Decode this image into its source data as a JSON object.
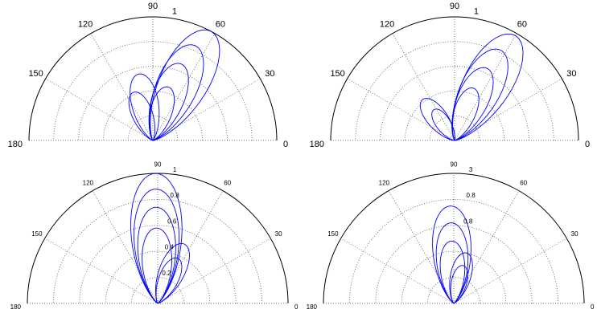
{
  "chart_data": [
    {
      "type": "polar",
      "description_free": true,
      "angle_ticks": [
        "0",
        "30",
        "60",
        "90",
        "120",
        "150",
        "180"
      ],
      "radial_tick_labels": [
        "1"
      ],
      "rlim": [
        0,
        1
      ],
      "theta_range_deg": [
        0,
        180
      ],
      "grid": true,
      "series_color": "#0000ff",
      "lobes": [
        {
          "theta_deg": 62,
          "r": 1.0
        },
        {
          "theta_deg": 66,
          "r": 0.84
        },
        {
          "theta_deg": 70,
          "r": 0.66
        },
        {
          "theta_deg": 74,
          "r": 0.45
        },
        {
          "theta_deg": 102,
          "r": 0.55
        },
        {
          "theta_deg": 112,
          "r": 0.42
        }
      ]
    },
    {
      "type": "polar",
      "angle_ticks": [
        "0",
        "30",
        "60",
        "90",
        "120",
        "150",
        "180"
      ],
      "radial_tick_labels": [
        "1"
      ],
      "rlim": [
        0,
        1
      ],
      "theta_range_deg": [
        0,
        180
      ],
      "grid": true,
      "series_color": "#0000ff",
      "lobes": [
        {
          "theta_deg": 60,
          "r": 0.98
        },
        {
          "theta_deg": 63,
          "r": 0.82
        },
        {
          "theta_deg": 66,
          "r": 0.64
        },
        {
          "theta_deg": 70,
          "r": 0.45
        },
        {
          "theta_deg": 128,
          "r": 0.42
        },
        {
          "theta_deg": 124,
          "r": 0.3
        }
      ]
    },
    {
      "type": "polar",
      "angle_ticks": [
        "0",
        "30",
        "60",
        "90",
        "120",
        "150",
        "180"
      ],
      "radial_tick_labels": [
        "0.2",
        "0.4",
        "0.6",
        "0.8",
        "1"
      ],
      "rlim": [
        0,
        1
      ],
      "theta_range_deg": [
        0,
        180
      ],
      "grid": true,
      "series_color": "#0000ff",
      "lobes": [
        {
          "theta_deg": 91,
          "r": 1.0
        },
        {
          "theta_deg": 91,
          "r": 0.88
        },
        {
          "theta_deg": 91,
          "r": 0.74
        },
        {
          "theta_deg": 91,
          "r": 0.58
        },
        {
          "theta_deg": 66,
          "r": 0.5
        },
        {
          "theta_deg": 66,
          "r": 0.38
        }
      ]
    },
    {
      "type": "polar",
      "angle_ticks": [
        "0",
        "30",
        "60",
        "90",
        "120",
        "150",
        "180"
      ],
      "radial_tick_labels": [
        "0.8",
        "0.8",
        "3"
      ],
      "rlim": [
        0,
        1
      ],
      "theta_range_deg": [
        0,
        180
      ],
      "grid": true,
      "series_color": "#0000ff",
      "lobes": [
        {
          "theta_deg": 92,
          "r": 0.75
        },
        {
          "theta_deg": 92,
          "r": 0.62
        },
        {
          "theta_deg": 92,
          "r": 0.48
        },
        {
          "theta_deg": 76,
          "r": 0.4
        },
        {
          "theta_deg": 76,
          "r": 0.3
        }
      ]
    }
  ]
}
